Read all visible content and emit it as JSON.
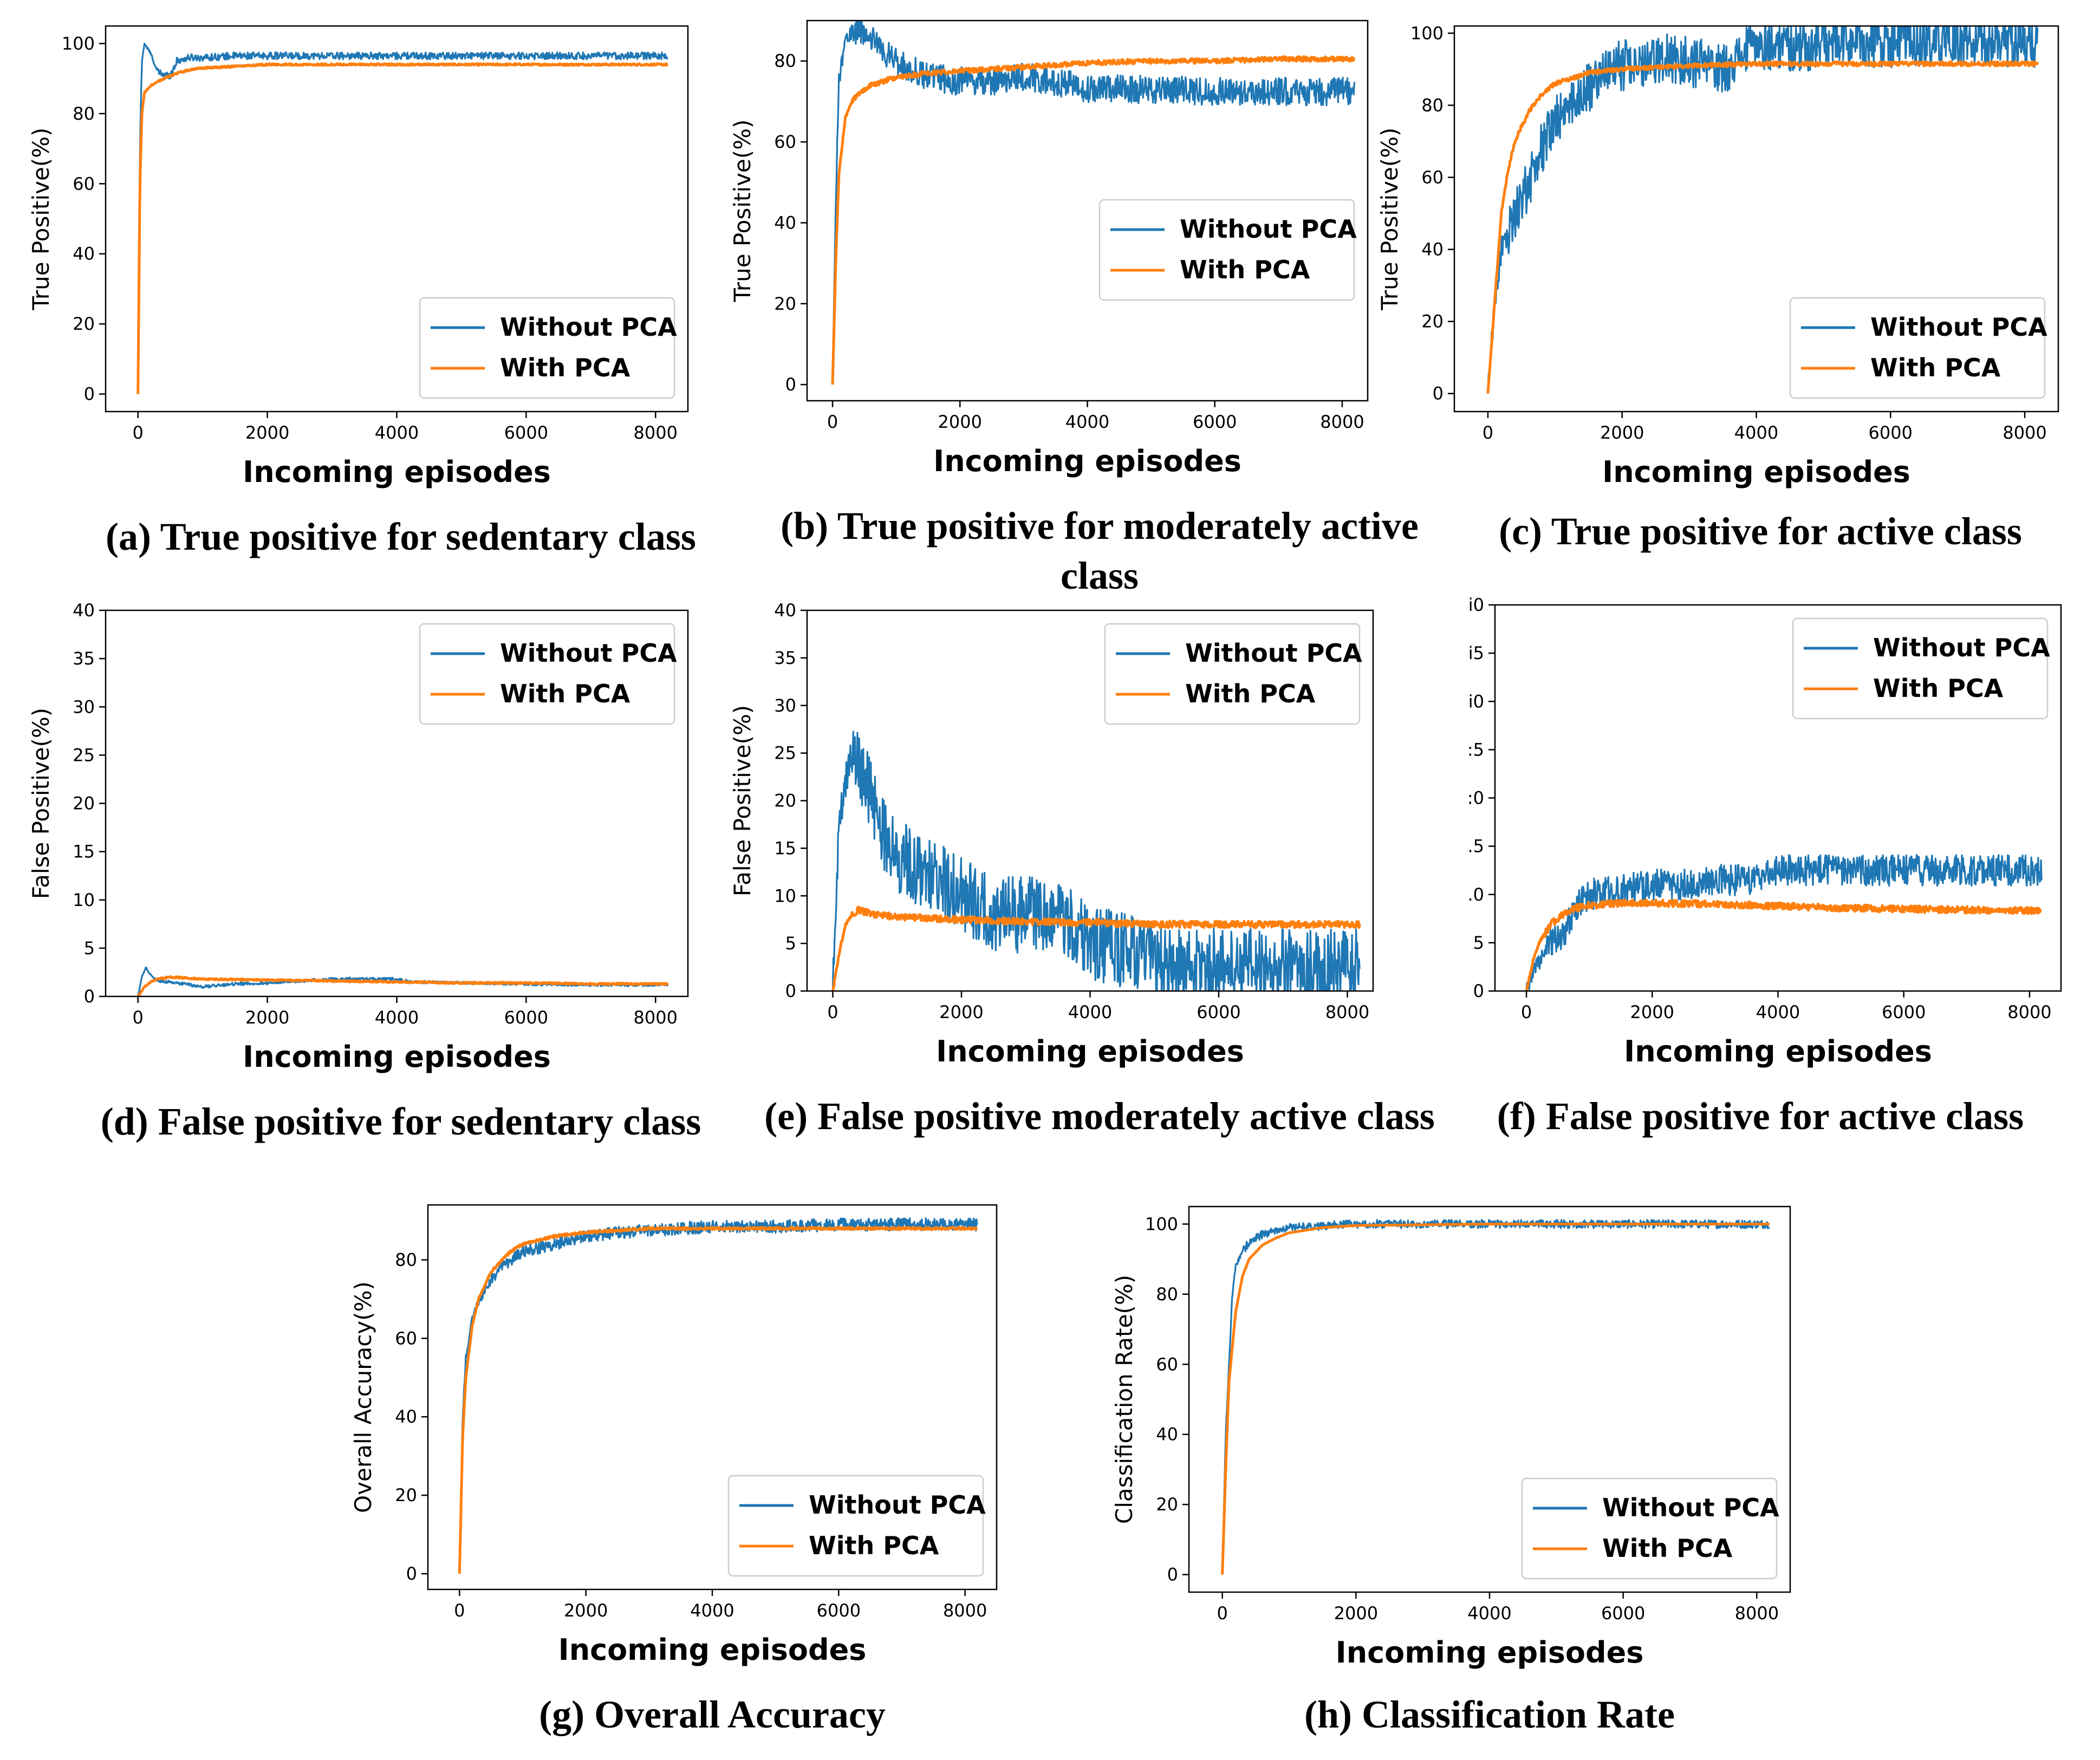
{
  "figure": {
    "series_colors": {
      "Without PCA": "#1f77b4",
      "With PCA": "#ff7f0e"
    },
    "xlabel": "Incoming episodes"
  },
  "chart_data": [
    {
      "id": "a",
      "type": "line",
      "caption": "(a) True positive for sedentary class",
      "ylabel": "True Positive(%)",
      "xlabel": "Incoming episodes",
      "xlim": [
        -500,
        8500
      ],
      "ylim": [
        -5,
        105
      ],
      "xticks": [
        0,
        2000,
        4000,
        6000,
        8000
      ],
      "yticks": [
        0,
        20,
        40,
        60,
        80,
        100
      ],
      "legend": {
        "position": "lower-right",
        "labels": [
          "Without PCA",
          "With PCA"
        ]
      },
      "series": [
        {
          "name": "Without PCA",
          "color": "#1f77b4",
          "x": [
            0,
            30,
            60,
            100,
            200,
            300,
            400,
            500,
            600,
            800,
            1000,
            1500,
            2000,
            3000,
            4000,
            5000,
            6000,
            7000,
            8200
          ],
          "y": [
            0,
            70,
            95,
            100,
            97,
            92,
            91,
            91,
            95,
            96,
            96,
            96.5,
            96.5,
            96.5,
            96.5,
            96.5,
            96.5,
            96.5,
            96.5
          ],
          "noise": 1.0
        },
        {
          "name": "With PCA",
          "color": "#ff7f0e",
          "x": [
            0,
            30,
            60,
            100,
            200,
            300,
            400,
            600,
            800,
            1000,
            1500,
            2000,
            3000,
            4000,
            5000,
            6000,
            7000,
            8200
          ],
          "y": [
            0,
            60,
            80,
            86,
            88,
            89,
            90,
            91.5,
            92.5,
            93,
            93.5,
            94,
            94,
            94,
            94,
            94,
            94,
            94
          ],
          "noise": 0.25
        }
      ]
    },
    {
      "id": "b",
      "type": "line",
      "caption": "(b) True positive for moderately active class",
      "ylabel": "True Positive(%)",
      "xlabel": "Incoming episodes",
      "xlim": [
        -400,
        8400
      ],
      "ylim": [
        -4,
        90
      ],
      "xticks": [
        0,
        2000,
        4000,
        6000,
        8000
      ],
      "yticks": [
        0,
        20,
        40,
        60,
        80
      ],
      "legend": {
        "position": "center-right",
        "labels": [
          "Without PCA",
          "With PCA"
        ]
      },
      "series": [
        {
          "name": "Without PCA",
          "color": "#1f77b4",
          "x": [
            0,
            50,
            100,
            200,
            300,
            400,
            600,
            800,
            1000,
            1500,
            2000,
            2500,
            3000,
            3500,
            4000,
            5000,
            6000,
            7000,
            8200
          ],
          "y": [
            0,
            45,
            75,
            85,
            87,
            88,
            86,
            82,
            80,
            76,
            75,
            75,
            76,
            75,
            73,
            73,
            72.5,
            72.5,
            72.5
          ],
          "noise": 3.5
        },
        {
          "name": "With PCA",
          "color": "#ff7f0e",
          "x": [
            0,
            50,
            100,
            200,
            300,
            400,
            600,
            800,
            1000,
            1500,
            2000,
            3000,
            4000,
            5000,
            6000,
            7000,
            8200
          ],
          "y": [
            0,
            30,
            52,
            66,
            70,
            72,
            74,
            75,
            76,
            77,
            77.5,
            78.5,
            79.5,
            80,
            80,
            80.5,
            80.5
          ],
          "noise": 0.6
        }
      ]
    },
    {
      "id": "c",
      "type": "line",
      "caption": "(c) True positive for active class",
      "ylabel": "True Positive(%)",
      "xlabel": "Incoming episodes",
      "xlim": [
        -500,
        8500
      ],
      "ylim": [
        -5,
        102
      ],
      "xticks": [
        0,
        2000,
        4000,
        6000,
        8000
      ],
      "yticks": [
        0,
        20,
        40,
        60,
        80,
        100
      ],
      "legend": {
        "position": "lower-right",
        "labels": [
          "Without PCA",
          "With PCA"
        ]
      },
      "series": [
        {
          "name": "Without PCA",
          "color": "#1f77b4",
          "x": [
            0,
            100,
            200,
            300,
            400,
            600,
            800,
            1000,
            1200,
            1500,
            1800,
            2200,
            2600,
            3000,
            3500,
            4000,
            4800,
            5000,
            6000,
            7000,
            8200
          ],
          "y": [
            0,
            25,
            40,
            45,
            50,
            58,
            68,
            75,
            80,
            85,
            90,
            92,
            93,
            92,
            90,
            97,
            96,
            97.5,
            97.5,
            97.5,
            97.5
          ],
          "noise": 7.0
        },
        {
          "name": "With PCA",
          "color": "#ff7f0e",
          "x": [
            0,
            100,
            200,
            300,
            400,
            600,
            800,
            1000,
            1500,
            2000,
            3000,
            4000,
            5000,
            6000,
            7000,
            8200
          ],
          "y": [
            0,
            25,
            50,
            62,
            70,
            78,
            83,
            86,
            89,
            90,
            91,
            91.5,
            91.5,
            91.5,
            91.5,
            91.5
          ],
          "noise": 0.6
        }
      ]
    },
    {
      "id": "d",
      "type": "line",
      "caption": "(d) False positive for sedentary class",
      "ylabel": "False Positive(%)",
      "xlabel": "Incoming episodes",
      "xlim": [
        -500,
        8500
      ],
      "ylim": [
        0,
        40
      ],
      "xticks": [
        0,
        2000,
        4000,
        6000,
        8000
      ],
      "yticks": [
        0,
        5,
        10,
        15,
        20,
        25,
        30,
        35,
        40
      ],
      "legend": {
        "position": "top-right",
        "labels": [
          "Without PCA",
          "With PCA"
        ]
      },
      "series": [
        {
          "name": "Without PCA",
          "color": "#1f77b4",
          "x": [
            0,
            60,
            120,
            200,
            300,
            500,
            800,
            1000,
            1500,
            2000,
            3000,
            4000,
            4200,
            5000,
            6000,
            7000,
            8200
          ],
          "y": [
            0,
            2.0,
            3.0,
            2.2,
            1.6,
            1.5,
            1.2,
            1.0,
            1.3,
            1.4,
            1.8,
            1.8,
            1.5,
            1.4,
            1.3,
            1.2,
            1.2
          ],
          "noise": 0.15
        },
        {
          "name": "With PCA",
          "color": "#ff7f0e",
          "x": [
            0,
            100,
            200,
            300,
            500,
            800,
            1000,
            2000,
            3000,
            4000,
            5000,
            6000,
            7000,
            8200
          ],
          "y": [
            0,
            1.0,
            1.5,
            1.8,
            2.0,
            1.9,
            1.8,
            1.7,
            1.6,
            1.5,
            1.4,
            1.4,
            1.3,
            1.3
          ],
          "noise": 0.08
        }
      ]
    },
    {
      "id": "e",
      "type": "line",
      "caption": "(e) False positive moderately active class",
      "ylabel": "False Positive(%)",
      "xlabel": "Incoming episodes",
      "xlim": [
        -400,
        8400
      ],
      "ylim": [
        0,
        40
      ],
      "xticks": [
        0,
        2000,
        4000,
        6000,
        8000
      ],
      "yticks": [
        0,
        5,
        10,
        15,
        20,
        25,
        30,
        35,
        40
      ],
      "legend": {
        "position": "top-right",
        "labels": [
          "Without PCA",
          "With PCA"
        ]
      },
      "series": [
        {
          "name": "Without PCA",
          "color": "#1f77b4",
          "x": [
            0,
            50,
            100,
            200,
            300,
            400,
            500,
            700,
            1000,
            1300,
            1600,
            2000,
            2500,
            3000,
            3500,
            4000,
            4800,
            5000,
            6000,
            7000,
            8200
          ],
          "y": [
            0,
            10,
            18,
            22,
            26,
            25,
            22,
            18,
            14,
            13,
            12,
            10,
            8,
            8,
            8,
            5,
            4,
            2.7,
            2.6,
            2.5,
            2.5
          ],
          "noise": 4.0
        },
        {
          "name": "With PCA",
          "color": "#ff7f0e",
          "x": [
            0,
            100,
            200,
            300,
            400,
            500,
            700,
            1000,
            2000,
            3000,
            4000,
            5000,
            6000,
            7000,
            8200
          ],
          "y": [
            0,
            4,
            7,
            8,
            8.5,
            8.3,
            8,
            7.8,
            7.5,
            7.3,
            7.2,
            7.0,
            7.0,
            7.0,
            7.0
          ],
          "noise": 0.35
        }
      ]
    },
    {
      "id": "f",
      "type": "line",
      "caption": "(f) False positive for active class",
      "ylabel": "",
      "xlabel": "Incoming episodes",
      "ylabel_clipped": true,
      "xlim": [
        -500,
        8500
      ],
      "ylim": [
        0,
        40
      ],
      "xticks": [
        0,
        2000,
        4000,
        6000,
        8000
      ],
      "yticks": [
        0,
        5,
        10,
        15,
        20,
        25,
        30,
        35,
        40
      ],
      "ytick_labels_clipped": [
        "0",
        "5",
        ".0",
        ".5",
        ":0",
        ":5",
        "i0",
        "i5",
        "i0"
      ],
      "legend": {
        "position": "top-right",
        "labels": [
          "Without PCA",
          "With PCA"
        ]
      },
      "series": [
        {
          "name": "Without PCA",
          "color": "#1f77b4",
          "x": [
            0,
            100,
            200,
            300,
            400,
            600,
            800,
            1000,
            1500,
            2000,
            2500,
            3000,
            3500,
            4000,
            5000,
            6000,
            7000,
            8200
          ],
          "y": [
            0,
            2,
            3,
            4,
            5,
            6,
            9,
            10,
            10.5,
            11,
            11,
            11.5,
            11.5,
            12.5,
            12.5,
            12.5,
            12.5,
            12.5
          ],
          "noise": 1.6
        },
        {
          "name": "With PCA",
          "color": "#ff7f0e",
          "x": [
            0,
            100,
            200,
            300,
            400,
            600,
            800,
            1000,
            1500,
            2000,
            3000,
            4000,
            5000,
            6000,
            7000,
            8200
          ],
          "y": [
            0,
            3,
            5,
            6,
            7,
            8,
            8.6,
            8.9,
            9.1,
            9.1,
            9.0,
            8.8,
            8.6,
            8.5,
            8.4,
            8.3
          ],
          "noise": 0.35
        }
      ]
    },
    {
      "id": "g",
      "type": "line",
      "caption": "(g) Overall Accuracy",
      "ylabel": "Overall Accuracy(%)",
      "xlabel": "Incoming episodes",
      "xlim": [
        -500,
        8500
      ],
      "ylim": [
        -4,
        94
      ],
      "xticks": [
        0,
        2000,
        4000,
        6000,
        8000
      ],
      "yticks": [
        0,
        20,
        40,
        60,
        80
      ],
      "legend": {
        "position": "lower-right",
        "labels": [
          "Without PCA",
          "With PCA"
        ]
      },
      "series": [
        {
          "name": "Without PCA",
          "color": "#1f77b4",
          "x": [
            0,
            50,
            100,
            200,
            300,
            500,
            800,
            1000,
            1500,
            2000,
            2500,
            3000,
            3500,
            4000,
            5000,
            6000,
            7000,
            8200
          ],
          "y": [
            0,
            40,
            55,
            65,
            70,
            75,
            80,
            82,
            84,
            86,
            87,
            87.5,
            88,
            88.5,
            88.5,
            89,
            89,
            89
          ],
          "noise": 1.6
        },
        {
          "name": "With PCA",
          "color": "#ff7f0e",
          "x": [
            0,
            50,
            100,
            200,
            300,
            500,
            800,
            1000,
            1500,
            2000,
            3000,
            4000,
            5000,
            6000,
            7000,
            8200
          ],
          "y": [
            0,
            35,
            50,
            63,
            70,
            77,
            82,
            84,
            86,
            87,
            88,
            88,
            88,
            88,
            88,
            88
          ],
          "noise": 0.3
        }
      ]
    },
    {
      "id": "h",
      "type": "line",
      "caption": "(h) Classification Rate",
      "ylabel": "Classification Rate(%)",
      "xlabel": "Incoming episodes",
      "xlim": [
        -500,
        8500
      ],
      "ylim": [
        -5,
        105
      ],
      "xticks": [
        0,
        2000,
        4000,
        6000,
        8000
      ],
      "yticks": [
        0,
        20,
        40,
        60,
        80,
        100
      ],
      "legend": {
        "position": "lower-right",
        "labels": [
          "Without PCA",
          "With PCA"
        ]
      },
      "series": [
        {
          "name": "Without PCA",
          "color": "#1f77b4",
          "x": [
            0,
            50,
            100,
            150,
            200,
            300,
            400,
            600,
            800,
            1000,
            1500,
            2000,
            4000,
            6000,
            8200
          ],
          "y": [
            0,
            40,
            60,
            80,
            88,
            92,
            95,
            97,
            98.5,
            99,
            99.5,
            100,
            100,
            100,
            100
          ],
          "noise": 1.2
        },
        {
          "name": "With PCA",
          "color": "#ff7f0e",
          "x": [
            0,
            50,
            100,
            200,
            300,
            400,
            600,
            800,
            1000,
            1500,
            2000,
            4000,
            6000,
            8200
          ],
          "y": [
            0,
            30,
            55,
            75,
            85,
            90,
            94,
            96,
            97.5,
            99,
            99.6,
            100,
            100,
            100
          ],
          "noise": 0
        }
      ]
    }
  ]
}
